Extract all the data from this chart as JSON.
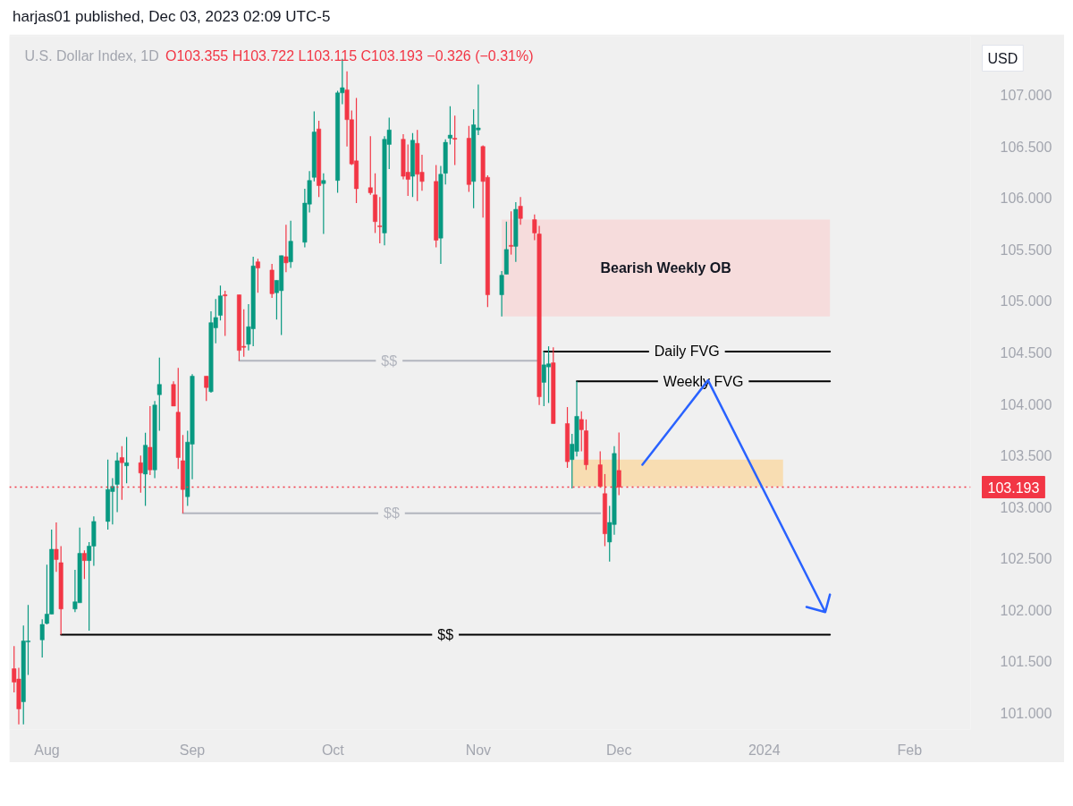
{
  "chart_data": {
    "type": "candlestick",
    "title": "U.S. Dollar Index, 1D",
    "subtitle": "O103.355 H103.722 L103.115 C103.193 −0.326 (−0.31%)",
    "ylabel": "USD",
    "annotations": [
      "harjas01 published, Dec 03, 2023 02:09 UTC-5",
      "Bearish Weekly OB"
    ],
    "xlim": [
      "2023-07-24",
      "2024-02-14"
    ],
    "xticks": [
      {
        "value": "2023-08-01",
        "label": "Aug"
      },
      {
        "value": "2023-09-01",
        "label": "Sep"
      },
      {
        "value": "2023-10-01",
        "label": "Oct"
      },
      {
        "value": "2023-11-01",
        "label": "Nov"
      },
      {
        "value": "2023-12-01",
        "label": "Dec"
      },
      {
        "value": "2024-01-01",
        "label": "2024"
      },
      {
        "value": "2024-02-01",
        "label": "Feb"
      }
    ],
    "ylim": [
      100.84,
      107.57
    ],
    "yticks": [
      {
        "value": 101,
        "label": "101.000"
      },
      {
        "value": 101.5,
        "label": "101.500"
      },
      {
        "value": 102,
        "label": "102.000"
      },
      {
        "value": 102.5,
        "label": "102.500"
      },
      {
        "value": 103,
        "label": "103.000"
      },
      {
        "value": 103.5,
        "label": "103.500"
      },
      {
        "value": 104,
        "label": "104.000"
      },
      {
        "value": 104.5,
        "label": "104.500"
      },
      {
        "value": 105,
        "label": "105.000"
      },
      {
        "value": 105.5,
        "label": "105.500"
      },
      {
        "value": 106,
        "label": "106.000"
      },
      {
        "value": 106.5,
        "label": "106.500"
      },
      {
        "value": 107,
        "label": "107.000"
      }
    ],
    "grid": false,
    "ref_lines": [
      {
        "axis": "y",
        "value": 103.193,
        "label": "103.193",
        "color": "#f23645",
        "line_style": "dotted"
      }
    ],
    "series": [
      {
        "x": [
          "2023-07-25",
          "2023-07-26",
          "2023-07-27",
          "2023-07-28",
          "2023-07-31",
          "2023-08-01",
          "2023-08-02",
          "2023-08-03",
          "2023-08-04",
          "2023-08-07",
          "2023-08-08",
          "2023-08-09",
          "2023-08-10",
          "2023-08-11",
          "2023-08-14",
          "2023-08-15",
          "2023-08-16",
          "2023-08-17",
          "2023-08-18",
          "2023-08-21",
          "2023-08-22",
          "2023-08-23",
          "2023-08-24",
          "2023-08-25",
          "2023-08-28",
          "2023-08-29",
          "2023-08-30",
          "2023-08-31",
          "2023-09-01",
          "2023-09-04",
          "2023-09-05",
          "2023-09-06",
          "2023-09-07",
          "2023-09-08",
          "2023-09-11",
          "2023-09-12",
          "2023-09-13",
          "2023-09-14",
          "2023-09-15",
          "2023-09-18",
          "2023-09-19",
          "2023-09-20",
          "2023-09-21",
          "2023-09-22",
          "2023-09-25",
          "2023-09-26",
          "2023-09-27",
          "2023-09-28",
          "2023-09-29",
          "2023-10-02",
          "2023-10-03",
          "2023-10-04",
          "2023-10-05",
          "2023-10-06",
          "2023-10-09",
          "2023-10-10",
          "2023-10-11",
          "2023-10-12",
          "2023-10-13",
          "2023-10-16",
          "2023-10-17",
          "2023-10-18",
          "2023-10-19",
          "2023-10-20",
          "2023-10-23",
          "2023-10-24",
          "2023-10-25",
          "2023-10-26",
          "2023-10-27",
          "2023-10-30",
          "2023-10-31",
          "2023-11-01",
          "2023-11-02",
          "2023-11-03",
          "2023-11-06",
          "2023-11-07",
          "2023-11-08",
          "2023-11-09",
          "2023-11-10",
          "2023-11-13",
          "2023-11-14",
          "2023-11-15",
          "2023-11-16",
          "2023-11-17",
          "2023-11-20",
          "2023-11-21",
          "2023-11-22",
          "2023-11-23",
          "2023-11-24",
          "2023-11-27",
          "2023-11-28",
          "2023-11-29",
          "2023-11-30",
          "2023-12-01"
        ],
        "ohlc": [
          [
            101.43,
            101.65,
            101.2,
            101.3
          ],
          [
            101.33,
            101.44,
            100.89,
            101.04
          ],
          [
            101.11,
            101.85,
            100.89,
            101.7
          ],
          [
            101.69,
            102.05,
            101.37,
            101.7
          ],
          [
            101.71,
            101.91,
            101.54,
            101.86
          ],
          [
            101.87,
            102.44,
            101.86,
            101.96
          ],
          [
            101.96,
            102.78,
            101.96,
            102.59
          ],
          [
            102.59,
            102.85,
            102.37,
            102.49
          ],
          [
            102.46,
            102.62,
            101.76,
            102.01
          ],
          [
            102.01,
            102.39,
            101.98,
            102.08
          ],
          [
            102.07,
            102.8,
            102.07,
            102.55
          ],
          [
            102.55,
            102.58,
            102.3,
            102.48
          ],
          [
            102.48,
            102.66,
            101.8,
            102.62
          ],
          [
            102.62,
            102.91,
            102.43,
            102.86
          ],
          [
            102.86,
            103.46,
            102.78,
            103.17
          ],
          [
            103.15,
            103.28,
            102.83,
            103.2
          ],
          [
            103.22,
            103.53,
            102.95,
            103.45
          ],
          [
            103.48,
            103.59,
            103.07,
            103.43
          ],
          [
            103.4,
            103.68,
            103.23,
            103.43
          ],
          [
            103.43,
            103.5,
            103.14,
            103.33
          ],
          [
            103.32,
            103.72,
            103.01,
            103.6
          ],
          [
            103.58,
            103.98,
            103.31,
            103.36
          ],
          [
            103.36,
            104.03,
            103.28,
            103.99
          ],
          [
            104.09,
            104.45,
            103.74,
            104.19
          ],
          [
            104.19,
            104.22,
            103.98,
            103.98
          ],
          [
            103.92,
            104.35,
            103.37,
            103.48
          ],
          [
            103.45,
            103.7,
            102.94,
            103.17
          ],
          [
            103.1,
            103.74,
            103.01,
            103.63
          ],
          [
            103.61,
            104.29,
            103.27,
            104.27
          ],
          [
            104.27,
            104.27,
            104.03,
            104.16
          ],
          [
            104.12,
            104.9,
            104.11,
            104.79
          ],
          [
            104.74,
            105.02,
            104.59,
            104.84
          ],
          [
            104.86,
            105.15,
            104.81,
            105.05
          ],
          [
            105.06,
            105.1,
            104.66,
            105.05
          ],
          [
            105.06,
            105.06,
            104.42,
            104.52
          ],
          [
            104.56,
            104.92,
            104.46,
            104.55
          ],
          [
            104.58,
            104.97,
            104.52,
            104.75
          ],
          [
            104.73,
            105.43,
            104.56,
            105.34
          ],
          [
            105.38,
            105.41,
            105.08,
            105.32
          ],
          [
            105.3,
            105.36,
            105.03,
            105.07
          ],
          [
            105.08,
            105.2,
            104.82,
            105.2
          ],
          [
            105.1,
            105.44,
            104.67,
            105.44
          ],
          [
            105.43,
            105.74,
            105.28,
            105.37
          ],
          [
            105.38,
            105.78,
            105.32,
            105.58
          ],
          [
            105.57,
            106.09,
            105.52,
            105.95
          ],
          [
            105.94,
            106.26,
            105.86,
            106.17
          ],
          [
            106.2,
            106.84,
            106.16,
            106.64
          ],
          [
            106.67,
            106.75,
            106.01,
            106.12
          ],
          [
            106.14,
            106.24,
            105.65,
            106.17
          ],
          [
            106.17,
            107.04,
            106.05,
            107.02
          ],
          [
            107.02,
            107.35,
            106.91,
            107.07
          ],
          [
            107.05,
            107.23,
            106.5,
            106.76
          ],
          [
            106.76,
            106.85,
            106.32,
            106.33
          ],
          [
            106.36,
            106.97,
            105.95,
            106.09
          ],
          [
            106.1,
            106.6,
            106.03,
            106.05
          ],
          [
            106.03,
            106.24,
            105.66,
            105.77
          ],
          [
            105.73,
            106.01,
            105.56,
            105.72
          ],
          [
            105.66,
            106.6,
            105.54,
            106.57
          ],
          [
            106.52,
            106.78,
            106.28,
            106.66
          ],
          [
            106.57,
            106.62,
            106.18,
            106.21
          ],
          [
            106.25,
            106.52,
            106.02,
            106.18
          ],
          [
            106.21,
            106.63,
            106.01,
            106.56
          ],
          [
            106.53,
            106.66,
            105.97,
            106.23
          ],
          [
            106.25,
            106.42,
            106.07,
            106.16
          ],
          [
            106.16,
            106.32,
            105.52,
            105.59
          ],
          [
            105.61,
            106.31,
            105.36,
            106.23
          ],
          [
            106.24,
            106.57,
            106.13,
            106.54
          ],
          [
            106.58,
            106.89,
            106.52,
            106.61
          ],
          [
            106.58,
            106.8,
            106.32,
            106.57
          ],
          [
            106.58,
            106.7,
            106.06,
            106.13
          ],
          [
            106.16,
            106.86,
            105.9,
            106.71
          ],
          [
            106.66,
            107.1,
            106.61,
            106.68
          ],
          [
            106.5,
            106.51,
            105.81,
            106.16
          ],
          [
            106.2,
            106.22,
            104.94,
            105.06
          ],
          [
            105.06,
            105.29,
            104.85,
            105.25
          ],
          [
            105.26,
            105.77,
            105.26,
            105.5
          ],
          [
            105.54,
            105.87,
            105.45,
            105.53
          ],
          [
            105.53,
            105.96,
            105.38,
            105.89
          ],
          [
            105.92,
            106.01,
            105.74,
            105.8
          ],
          [
            105.79,
            105.84,
            105.59,
            105.66
          ],
          [
            105.65,
            105.73,
            103.99,
            104.07
          ],
          [
            104.21,
            104.51,
            103.98,
            104.38
          ],
          [
            104.36,
            104.56,
            104.01,
            104.39
          ],
          [
            104.4,
            104.55,
            103.81,
            103.81
          ],
          [
            103.81,
            103.97,
            103.38,
            103.44
          ],
          [
            103.46,
            103.71,
            103.18,
            103.61
          ],
          [
            103.54,
            104.22,
            103.49,
            103.88
          ],
          [
            103.85,
            103.93,
            103.54,
            103.75
          ],
          [
            103.74,
            103.85,
            103.36,
            103.41
          ],
          [
            103.41,
            103.54,
            103.2,
            103.2
          ],
          [
            103.13,
            103.32,
            102.62,
            102.74
          ],
          [
            102.66,
            103.01,
            102.47,
            102.85
          ],
          [
            102.83,
            103.59,
            102.73,
            103.52
          ],
          [
            103.355,
            103.722,
            103.115,
            103.193
          ]
        ],
        "colors": [
          "#f23645",
          "#f23645",
          "#089981",
          "#089981",
          "#089981",
          "#089981",
          "#089981",
          "#f23645",
          "#f23645",
          "#089981",
          "#089981",
          "#f23645",
          "#089981",
          "#089981",
          "#089981",
          "#089981",
          "#089981",
          "#f23645",
          "#089981",
          "#f23645",
          "#089981",
          "#f23645",
          "#089981",
          "#089981",
          "#f23645",
          "#f23645",
          "#f23645",
          "#089981",
          "#089981",
          "#f23645",
          "#089981",
          "#089981",
          "#089981",
          "#f23645",
          "#f23645",
          "#f23645",
          "#089981",
          "#089981",
          "#f23645",
          "#f23645",
          "#089981",
          "#089981",
          "#f23645",
          "#089981",
          "#089981",
          "#089981",
          "#089981",
          "#f23645",
          "#089981",
          "#089981",
          "#089981",
          "#f23645",
          "#f23645",
          "#f23645",
          "#f23645",
          "#f23645",
          "#f23645",
          "#089981",
          "#089981",
          "#f23645",
          "#f23645",
          "#089981",
          "#f23645",
          "#f23645",
          "#f23645",
          "#089981",
          "#089981",
          "#089981",
          "#f23645",
          "#f23645",
          "#089981",
          "#089981",
          "#f23645",
          "#f23645",
          "#089981",
          "#089981",
          "#f23645",
          "#089981",
          "#f23645",
          "#f23645",
          "#f23645",
          "#089981",
          "#089981",
          "#f23645",
          "#f23645",
          "#089981",
          "#089981",
          "#f23645",
          "#f23645",
          "#f23645",
          "#f23645",
          "#089981",
          "#089981",
          "#f23645"
        ]
      },
      {
        "type": "line",
        "x": [
          "2023-11-06",
          "2024-01-15"
        ],
        "values": [
          null,
          null
        ],
        "lower": [
          104.85,
          104.85
        ],
        "upper": [
          105.79,
          105.79
        ],
        "color": "#f6dcdc"
      },
      {
        "type": "line",
        "x": [
          "2023-11-21",
          "2024-01-05"
        ],
        "values": [
          null,
          null
        ],
        "lower": [
          103.2,
          103.2
        ],
        "upper": [
          103.46,
          103.46
        ],
        "color": "#f8ddb2"
      },
      {
        "type": "line",
        "name": "Daily FVG",
        "x": [
          "2023-11-15",
          "2024-01-15"
        ],
        "values": [
          104.51,
          104.51
        ],
        "color": "#000000"
      },
      {
        "type": "line",
        "name": "Weekly FVG",
        "x": [
          "2023-11-22",
          "2024-01-15"
        ],
        "values": [
          104.22,
          104.22
        ],
        "color": "#000000"
      },
      {
        "type": "line",
        "name": "$$",
        "x": [
          "2023-09-11",
          "2023-11-14"
        ],
        "values": [
          104.42,
          104.42
        ],
        "color": "#b2b5be"
      },
      {
        "type": "line",
        "name": "$$",
        "x": [
          "2023-08-30",
          "2023-11-27"
        ],
        "values": [
          102.94,
          102.94
        ],
        "color": "#b2b5be"
      },
      {
        "type": "line",
        "name": "$$",
        "x": [
          "2023-08-04",
          "2024-01-15"
        ],
        "values": [
          101.76,
          101.76
        ],
        "color": "#000000"
      },
      {
        "type": "line",
        "x": [
          "2023-12-06",
          "2023-12-20",
          "2024-01-14",
          "2024-01-15",
          "2024-01-14",
          "2024-01-10"
        ],
        "values": [
          103.41,
          104.23,
          101.98,
          102.15,
          101.98,
          102.03
        ],
        "color": "#2962ff"
      }
    ]
  }
}
